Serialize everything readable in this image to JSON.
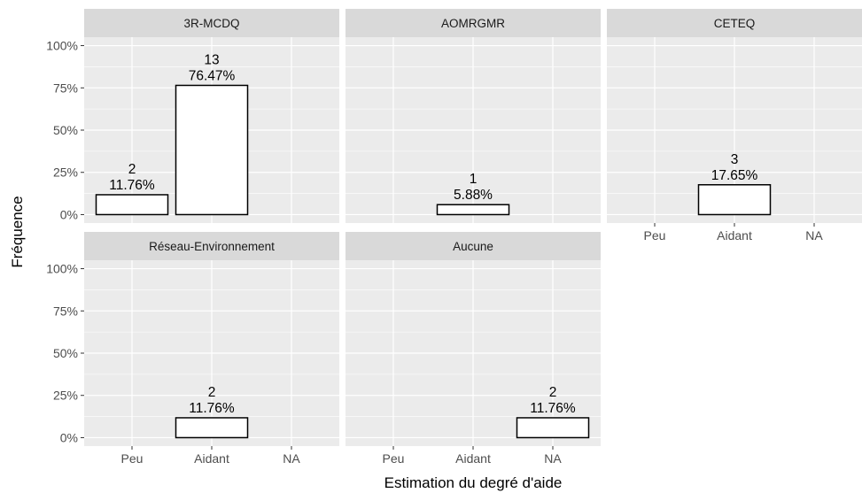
{
  "chart_data": {
    "type": "bar",
    "xlabel": "Estimation du degré d'aide",
    "ylabel": "Fréquence",
    "categories": [
      "Peu",
      "Aidant",
      "NA"
    ],
    "ylim": [
      -5,
      105
    ],
    "yticks": [
      {
        "value": 0,
        "label": "0%"
      },
      {
        "value": 25,
        "label": "25%"
      },
      {
        "value": 50,
        "label": "50%"
      },
      {
        "value": 75,
        "label": "75%"
      },
      {
        "value": 100,
        "label": "100%"
      }
    ],
    "minor_yticks": [
      12.5,
      37.5,
      62.5,
      87.5
    ],
    "grid": true,
    "color": "#ffffff",
    "edge_color": "#000000",
    "panels": [
      {
        "title": "3R-MCDQ",
        "values": [
          11.76,
          76.47,
          null
        ],
        "counts": [
          2,
          13,
          null
        ],
        "value_labels": [
          "11.76%",
          "76.47%",
          null
        ]
      },
      {
        "title": "AOMRGMR",
        "values": [
          null,
          5.88,
          null
        ],
        "counts": [
          null,
          1,
          null
        ],
        "value_labels": [
          null,
          "5.88%",
          null
        ]
      },
      {
        "title": "CETEQ",
        "values": [
          null,
          17.65,
          null
        ],
        "counts": [
          null,
          3,
          null
        ],
        "value_labels": [
          null,
          "17.65%",
          null
        ]
      },
      {
        "title": "Réseau-Environnement",
        "values": [
          null,
          11.76,
          null
        ],
        "counts": [
          null,
          2,
          null
        ],
        "value_labels": [
          null,
          "11.76%",
          null
        ]
      },
      {
        "title": "Aucune",
        "values": [
          null,
          null,
          11.76
        ],
        "counts": [
          null,
          null,
          2
        ],
        "value_labels": [
          null,
          null,
          "11.76%"
        ]
      }
    ]
  }
}
